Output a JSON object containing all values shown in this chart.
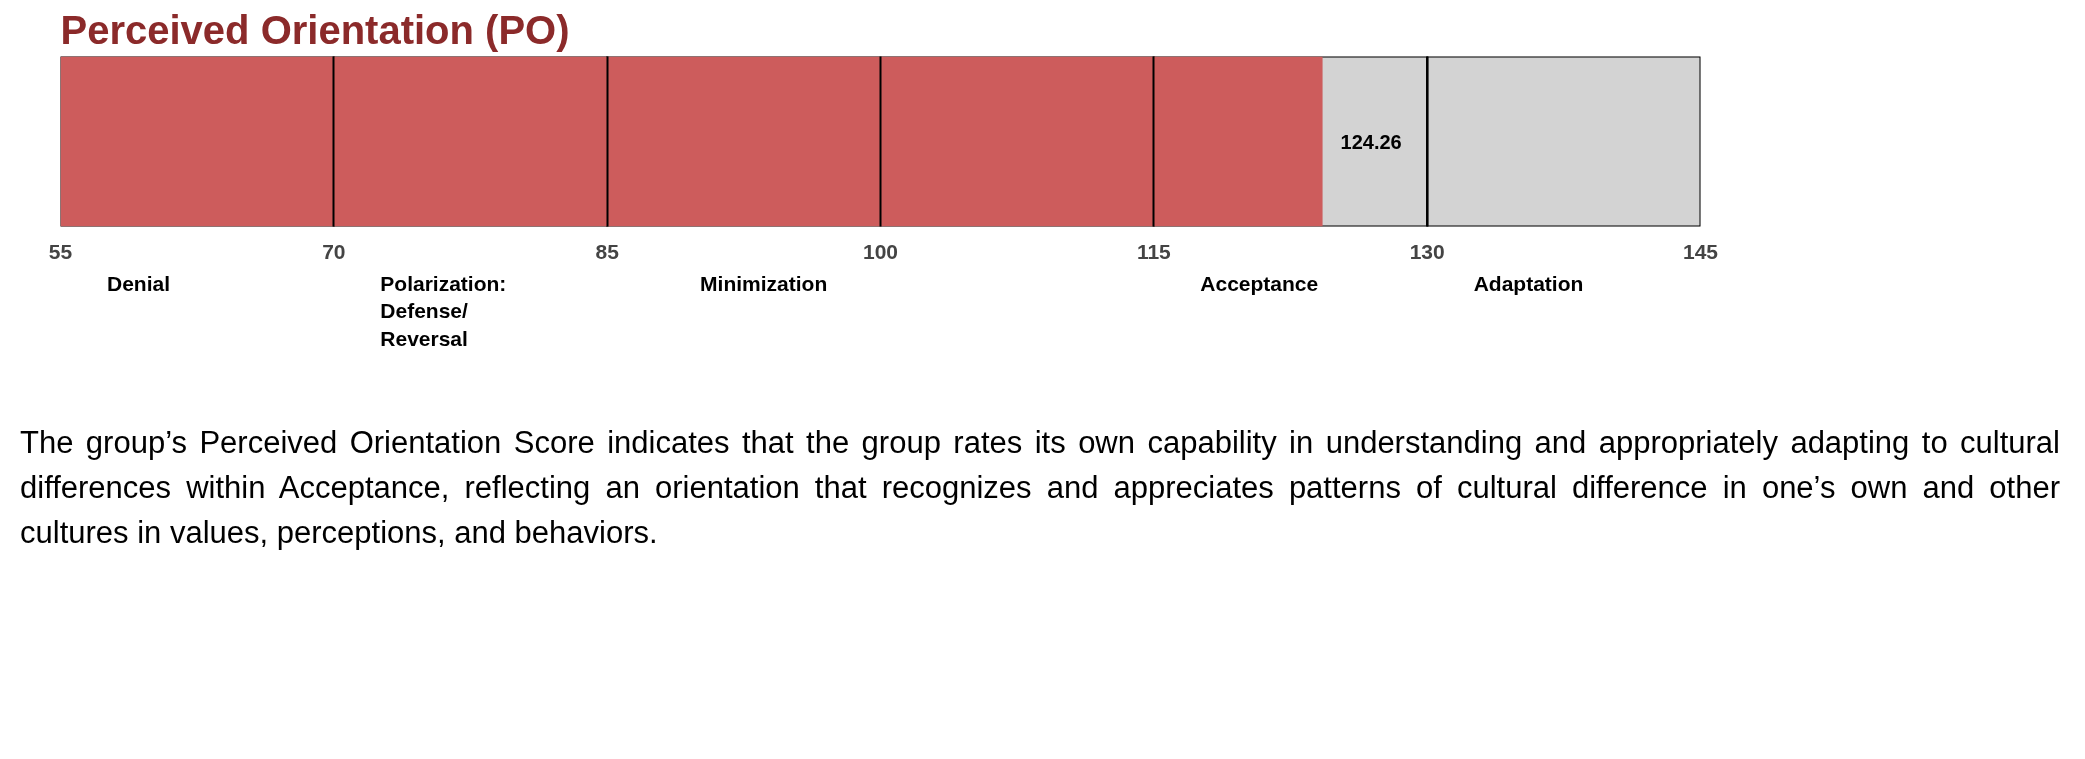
{
  "chart_data": {
    "type": "bar",
    "orientation": "horizontal",
    "title": "Perceived Orientation (PO)",
    "categories": [
      null
    ],
    "series": [
      {
        "color": "#cd5c5c",
        "values": [
          124.26
        ]
      }
    ],
    "data_labels": true,
    "xlim": [
      55,
      145
    ],
    "xticks": [
      55,
      70,
      85,
      100,
      115,
      130,
      145
    ],
    "grid": "x",
    "bands": [
      {
        "axis": "x",
        "from": 55,
        "to": 70,
        "label": "Denial",
        "color": "#d3d3d3"
      },
      {
        "axis": "x",
        "from": 70,
        "to": 85,
        "label": "Polarization:\nDefense/\nReversal",
        "color": "#d3d3d3"
      },
      {
        "axis": "x",
        "from": 85,
        "to": 115,
        "label": "Minimization",
        "color": "#d3d3d3"
      },
      {
        "axis": "x",
        "from": 115,
        "to": 130,
        "label": "Acceptance",
        "color": "#d3d3d3"
      },
      {
        "axis": "x",
        "from": 130,
        "to": 145,
        "label": "Adaptation",
        "color": "#d3d3d3"
      }
    ],
    "annotations": [
      "The group’s Perceived Orientation Score indicates that the group rates its own capability in understanding and appropriately adapting to cultural differences within Acceptance, reflecting an orientation that recognizes and appreciates patterns of cultural difference in one’s own and other cultures in values, perceptions, and behaviors."
    ]
  }
}
